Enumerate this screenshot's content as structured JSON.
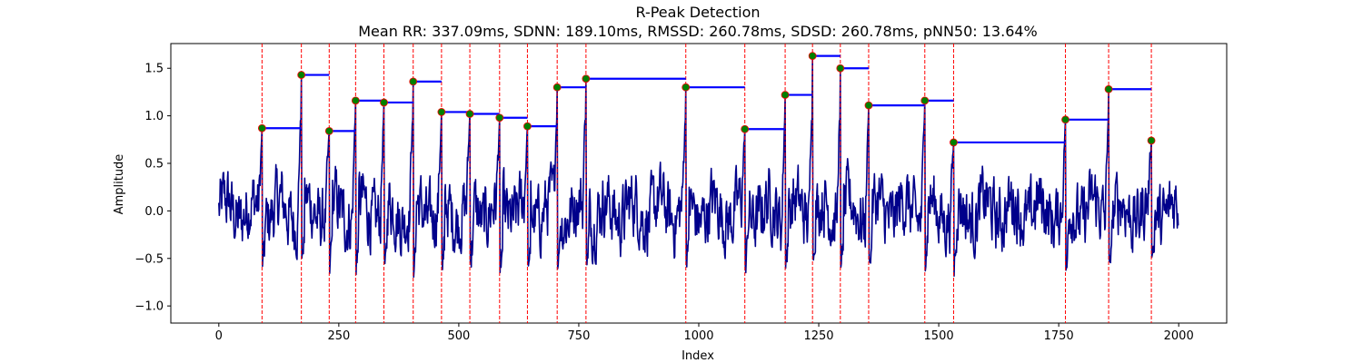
{
  "chart_data": {
    "type": "line",
    "title": "R-Peak Detection",
    "subtitle": "Mean RR: 337.09ms, SDNN: 189.10ms, RMSSD: 260.78ms, SDSD: 260.78ms, pNN50: 13.64%",
    "xlabel": "Index",
    "ylabel": "Amplitude",
    "xlim": [
      -100,
      2100
    ],
    "ylim": [
      -1.18,
      1.76
    ],
    "x_ticks": [
      0,
      250,
      500,
      750,
      1000,
      1250,
      1500,
      1750,
      2000
    ],
    "x_tick_labels": [
      "0",
      "250",
      "500",
      "750",
      "1000",
      "1250",
      "1500",
      "1750",
      "2000"
    ],
    "y_ticks": [
      -1.0,
      -0.5,
      0.0,
      0.5,
      1.0,
      1.5
    ],
    "y_tick_labels": [
      "−1.0",
      "−0.5",
      "0.0",
      "0.5",
      "1.0",
      "1.5"
    ],
    "grid": false,
    "colors": {
      "signal": "#00008b",
      "peak_line": "#ff0000",
      "rr_segment": "#0000ff",
      "peak_marker_fill": "#008000",
      "peak_marker_edge": "#ff0000"
    },
    "signal_length": 2000,
    "peaks": [
      {
        "x": 90,
        "y": 0.87
      },
      {
        "x": 172,
        "y": 1.43
      },
      {
        "x": 230,
        "y": 0.84
      },
      {
        "x": 285,
        "y": 1.16
      },
      {
        "x": 344,
        "y": 1.14
      },
      {
        "x": 405,
        "y": 1.36
      },
      {
        "x": 464,
        "y": 1.04
      },
      {
        "x": 523,
        "y": 1.02
      },
      {
        "x": 585,
        "y": 0.98
      },
      {
        "x": 643,
        "y": 0.89
      },
      {
        "x": 705,
        "y": 1.3
      },
      {
        "x": 765,
        "y": 1.39
      },
      {
        "x": 973,
        "y": 1.3
      },
      {
        "x": 1096,
        "y": 0.86
      },
      {
        "x": 1180,
        "y": 1.22
      },
      {
        "x": 1237,
        "y": 1.63
      },
      {
        "x": 1295,
        "y": 1.5
      },
      {
        "x": 1354,
        "y": 1.11
      },
      {
        "x": 1471,
        "y": 1.16
      },
      {
        "x": 1531,
        "y": 0.72
      },
      {
        "x": 1764,
        "y": 0.96
      },
      {
        "x": 1854,
        "y": 1.28
      },
      {
        "x": 1943,
        "y": 0.74
      }
    ]
  }
}
